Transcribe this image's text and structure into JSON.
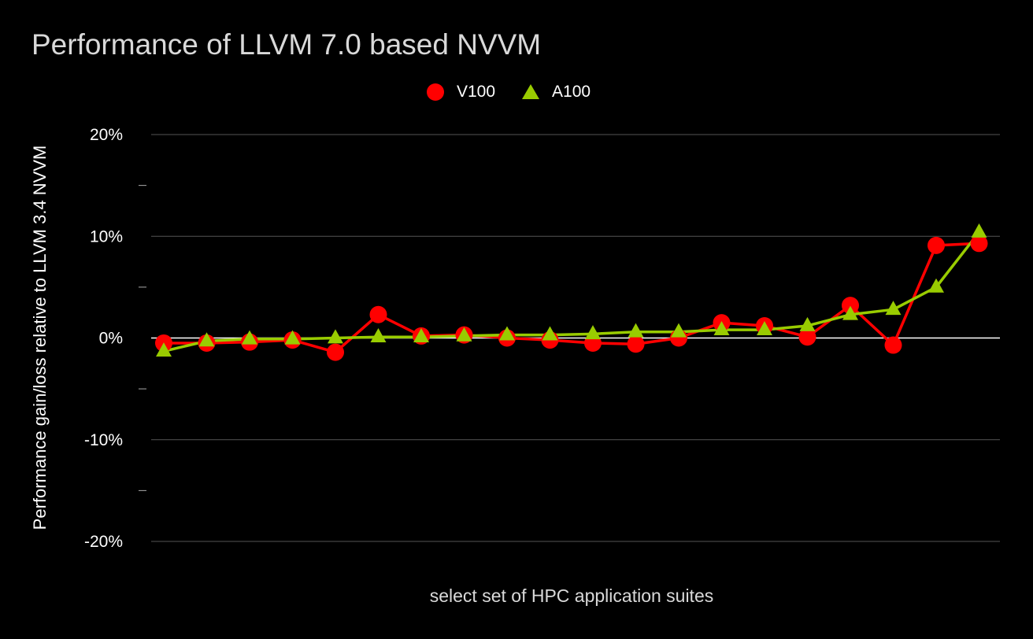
{
  "chart_data": {
    "type": "line",
    "title": "Performance of LLVM 7.0 based NVVM",
    "xlabel": "select set of HPC application suites",
    "ylabel": "Performance gain/loss relative to LLVM 3.4 NVVM",
    "ylim": [
      -20,
      20
    ],
    "yticks": [
      {
        "value": 20,
        "label": "20%"
      },
      {
        "value": 10,
        "label": "10%"
      },
      {
        "value": 0,
        "label": "0%"
      },
      {
        "value": -10,
        "label": "-10%"
      },
      {
        "value": -20,
        "label": "-20%"
      }
    ],
    "minor_yticks": [
      15,
      5,
      -5,
      -15
    ],
    "grid": true,
    "legend_position": "top-center",
    "x": [
      1,
      2,
      3,
      4,
      5,
      6,
      7,
      8,
      9,
      10,
      11,
      12,
      13,
      14,
      15,
      16,
      17,
      18,
      19,
      20
    ],
    "series": [
      {
        "name": "V100",
        "marker": "circle",
        "color": "#ff0000",
        "values": [
          -0.5,
          -0.5,
          -0.4,
          -0.2,
          -1.4,
          2.3,
          0.2,
          0.3,
          0.0,
          -0.2,
          -0.5,
          -0.6,
          0.0,
          1.5,
          1.2,
          0.1,
          3.2,
          -0.7,
          9.1,
          9.3
        ]
      },
      {
        "name": "A100",
        "marker": "triangle",
        "color": "#99cc00",
        "values": [
          -1.3,
          -0.3,
          -0.1,
          -0.1,
          0.0,
          0.1,
          0.1,
          0.2,
          0.3,
          0.3,
          0.4,
          0.6,
          0.6,
          0.8,
          0.8,
          1.2,
          2.3,
          2.8,
          5.0,
          10.4
        ]
      }
    ]
  }
}
